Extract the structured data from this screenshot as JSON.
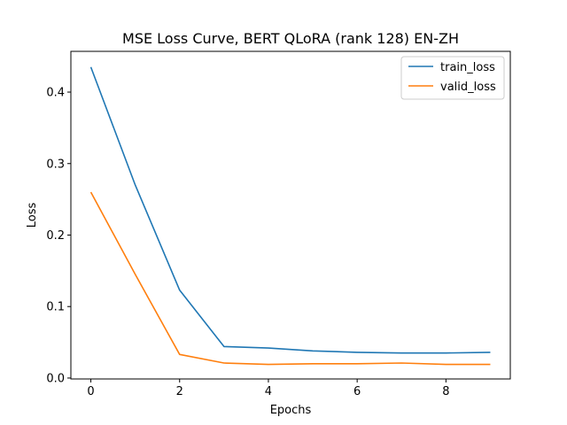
{
  "chart_data": {
    "type": "line",
    "title": "MSE Loss Curve, BERT QLoRA (rank 128) EN-ZH",
    "xlabel": "Epochs",
    "ylabel": "Loss",
    "x": [
      0,
      1,
      2,
      3,
      4,
      5,
      6,
      7,
      8,
      9
    ],
    "xlim": [
      -0.45,
      9.45
    ],
    "ylim": [
      -0.0013,
      0.457
    ],
    "xticks": [
      0,
      2,
      4,
      6,
      8
    ],
    "yticks": [
      0.0,
      0.1,
      0.2,
      0.3,
      0.4
    ],
    "xtick_labels": [
      "0",
      "2",
      "4",
      "6",
      "8"
    ],
    "ytick_labels": [
      "0.0",
      "0.1",
      "0.2",
      "0.3",
      "0.4"
    ],
    "grid": false,
    "legend_position": "top-right",
    "series": [
      {
        "name": "train_loss",
        "color": "#1f77b4",
        "values": [
          0.435,
          0.27,
          0.123,
          0.044,
          0.042,
          0.038,
          0.036,
          0.035,
          0.035,
          0.036
        ]
      },
      {
        "name": "valid_loss",
        "color": "#ff7f0e",
        "values": [
          0.26,
          0.145,
          0.033,
          0.021,
          0.019,
          0.02,
          0.02,
          0.021,
          0.019,
          0.019
        ]
      }
    ]
  }
}
